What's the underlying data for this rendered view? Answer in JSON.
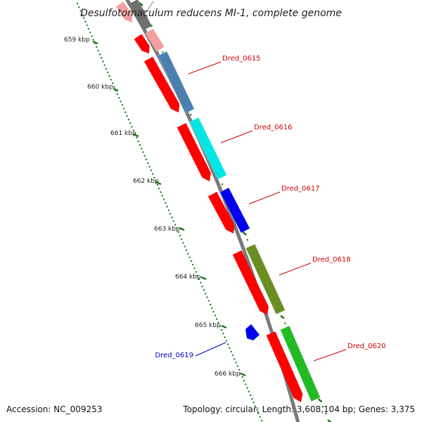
{
  "title": "Desulfotomaculum reducens MI-1, complete genome",
  "footer": {
    "accession": "Accession: NC_009253",
    "summary": "Topology: circular; Length: 3,608,104 bp; Genes: 3,375"
  },
  "colors": {
    "backbone": "#8a8a8a",
    "cds_forward": "#ff0000",
    "ticks": "#1f7a1f",
    "label_forward": "#cc0000",
    "label_reverse": "#0000cc"
  },
  "ticks": [
    "659 kbp",
    "660 kbp",
    "661 kbp",
    "662 kbp",
    "663 kbp",
    "664 kbp",
    "665 kbp",
    "666 kbp"
  ],
  "genes": [
    {
      "label": "Dred_0615",
      "color": "#4a7fb0"
    },
    {
      "label": "Dred_0616",
      "color": "#00e5e5"
    },
    {
      "label": "Dred_0617",
      "color": "#0000ee"
    },
    {
      "label": "Dred_0618",
      "color": "#6b8e23"
    },
    {
      "label": "Dred_0619",
      "color": "#0000ee"
    },
    {
      "label": "Dred_0620",
      "color": "#22bb22"
    }
  ]
}
